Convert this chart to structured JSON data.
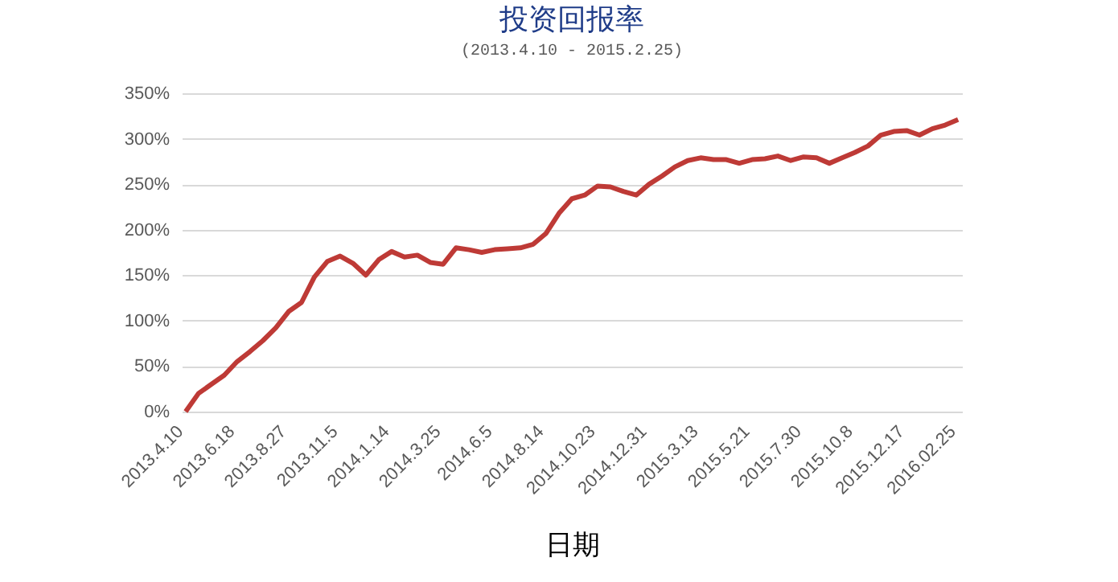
{
  "chart_data": {
    "type": "line",
    "title": "投资回报率",
    "subtitle": "(2013.4.10 - 2015.2.25)",
    "xlabel": "日期",
    "categories": [
      "2013.4.10",
      null,
      null,
      null,
      "2013.6.18",
      null,
      null,
      null,
      "2013.8.27",
      null,
      null,
      null,
      "2013.11.5",
      null,
      null,
      null,
      "2014.1.14",
      null,
      null,
      null,
      "2014.3.25",
      null,
      null,
      null,
      "2014.6.5",
      null,
      null,
      null,
      "2014.8.14",
      null,
      null,
      null,
      "2014.10.23",
      null,
      null,
      null,
      "2014.12.31",
      null,
      null,
      null,
      "2015.3.13",
      null,
      null,
      null,
      "2015.5.21",
      null,
      null,
      null,
      "2015.7.30",
      null,
      null,
      null,
      "2015.10.8",
      null,
      null,
      null,
      "2015.12.17",
      null,
      null,
      null,
      "2016.02.25"
    ],
    "series": [
      {
        "color": "#be3a36",
        "values": [
          0,
          20,
          30,
          40,
          55,
          66,
          78,
          92,
          110,
          120,
          148,
          165,
          171,
          163,
          150,
          167,
          176,
          170,
          172,
          164,
          162,
          180,
          178,
          175,
          178,
          179,
          180,
          184,
          196,
          218,
          234,
          238,
          248,
          247,
          242,
          238,
          250,
          259,
          269,
          276,
          279,
          277,
          277,
          273,
          277,
          278,
          281,
          276,
          280,
          279,
          273,
          279,
          285,
          292,
          304,
          308,
          309,
          304,
          311,
          315,
          321
        ]
      }
    ],
    "ylim": [
      0,
      350
    ],
    "yticks": [
      {
        "value": 0,
        "label": "0%"
      },
      {
        "value": 50,
        "label": "50%"
      },
      {
        "value": 100,
        "label": "100%"
      },
      {
        "value": 150,
        "label": "150%"
      },
      {
        "value": 200,
        "label": "200%"
      },
      {
        "value": 250,
        "label": "250%"
      },
      {
        "value": 300,
        "label": "300%"
      },
      {
        "value": 350,
        "label": "350%"
      }
    ],
    "grid": "y"
  }
}
